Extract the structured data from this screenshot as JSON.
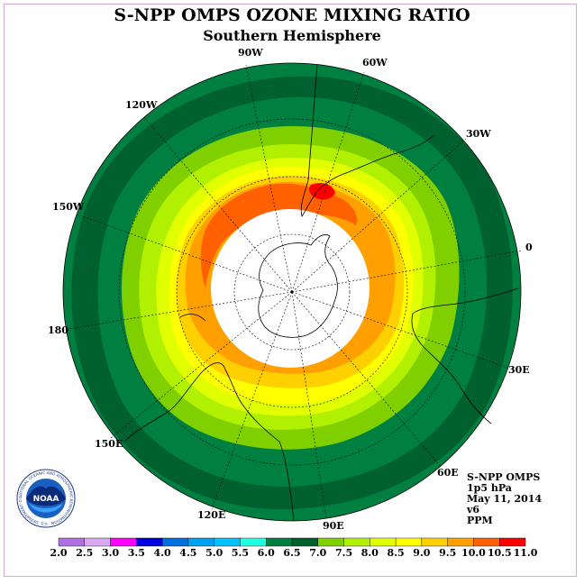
{
  "title": "S-NPP OMPS OZONE MIXING RATIO",
  "subtitle": "Southern Hemisphere",
  "longitude_labels": [
    {
      "text": "90W",
      "lon": -90
    },
    {
      "text": "60W",
      "lon": -60
    },
    {
      "text": "30W",
      "lon": -30
    },
    {
      "text": "0",
      "lon": 0
    },
    {
      "text": "30E",
      "lon": 30
    },
    {
      "text": "60E",
      "lon": 60
    },
    {
      "text": "90E",
      "lon": 90
    },
    {
      "text": "120E",
      "lon": 120
    },
    {
      "text": "150E",
      "lon": 150
    },
    {
      "text": "180",
      "lon": 180
    },
    {
      "text": "150W",
      "lon": -150
    },
    {
      "text": "120W",
      "lon": -120
    }
  ],
  "info": {
    "instrument": "S-NPP OMPS",
    "level": "1p5 hPa",
    "date": "May 11, 2014",
    "version": "v6",
    "units": "PPM"
  },
  "logo": {
    "text": "NOAA",
    "ring_text": "NATIONAL OCEANIC AND ATMOSPHERIC ADMINISTRATION · U.S. DEPARTMENT OF COMMERCE"
  },
  "colorbar": {
    "ticks": [
      "2.0",
      "2.5",
      "3.0",
      "3.5",
      "4.0",
      "4.5",
      "5.0",
      "5.5",
      "6.0",
      "6.5",
      "7.0",
      "7.5",
      "8.0",
      "8.5",
      "9.0",
      "9.5",
      "10.0",
      "10.5",
      "11.0"
    ],
    "colors": [
      "#b070e0",
      "#d8a8f0",
      "#ff00ff",
      "#0000e0",
      "#0070e0",
      "#00a0f0",
      "#00c0ff",
      "#20ffe0",
      "#008040",
      "#006030",
      "#80d000",
      "#b0f000",
      "#e0ff00",
      "#ffff00",
      "#ffd000",
      "#ffa000",
      "#ff6000",
      "#ff0000",
      "#8b4513"
    ]
  }
}
